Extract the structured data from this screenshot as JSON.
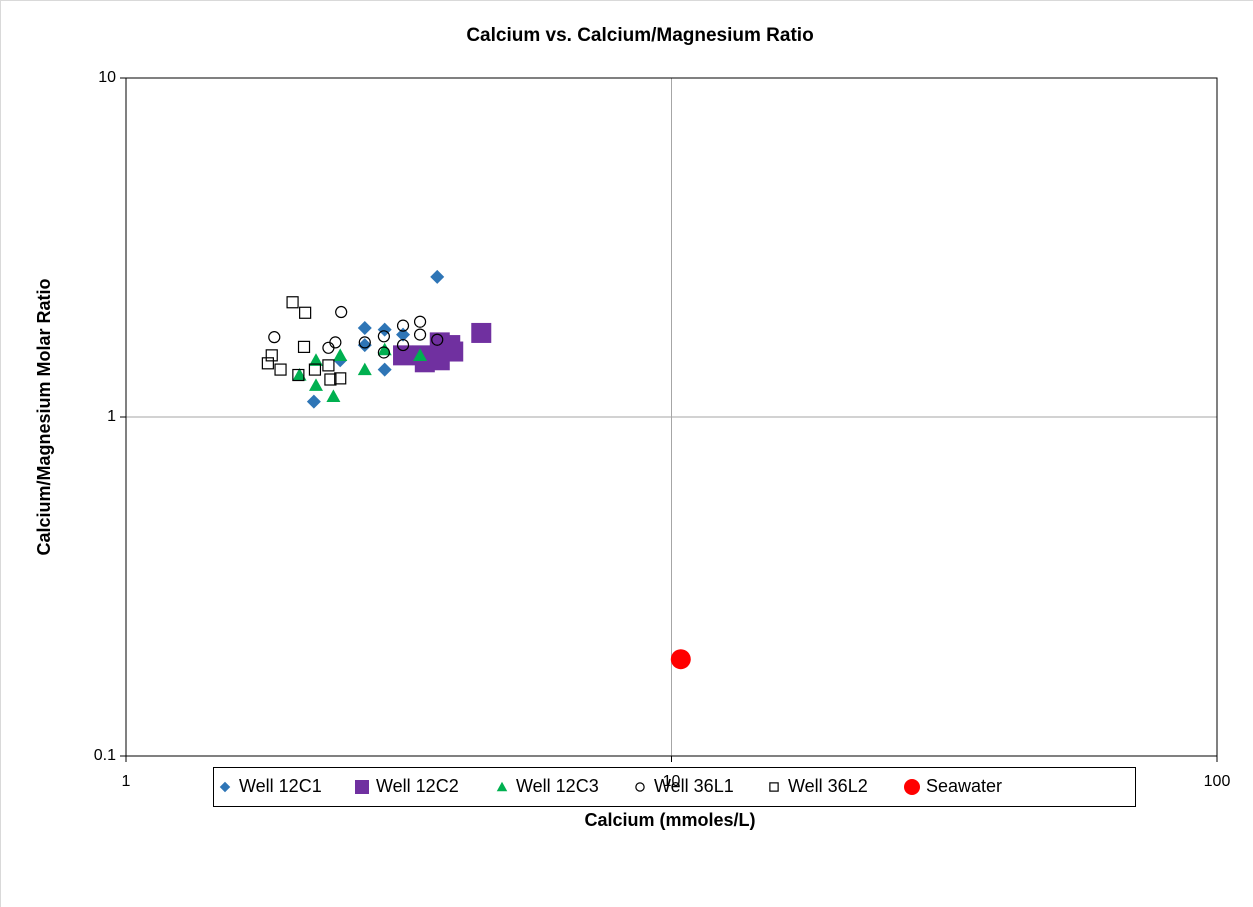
{
  "chart_data": {
    "type": "scatter",
    "title": "Calcium vs. Calcium/Magnesium  Ratio",
    "x_label": "Calcium (mmoles/L)",
    "y_label": "Calcium/Magnesium Molar Ratio",
    "xscale": "log",
    "yscale": "log",
    "xlim": [
      1,
      100
    ],
    "ylim": [
      0.1,
      10
    ],
    "xticks": [
      1,
      10,
      100
    ],
    "yticks": [
      0.1,
      1,
      10
    ],
    "grid": true,
    "legend": "bottom",
    "series": [
      {
        "name": "Well 12C1",
        "color": "#2e75b6",
        "marker": "diamond",
        "x": [
          3.72,
          2.21,
          2.74,
          2.98,
          2.98,
          2.74,
          3.22,
          2.47
        ],
        "values": [
          2.59,
          1.11,
          1.83,
          1.81,
          1.38,
          1.63,
          1.75,
          1.47
        ]
      },
      {
        "name": "Well 12C2",
        "color": "#7030a0",
        "marker": "square",
        "x": [
          3.76,
          3.93,
          3.5,
          3.22,
          4.48,
          3.76,
          3.53,
          3.98
        ],
        "values": [
          1.66,
          1.63,
          1.52,
          1.52,
          1.77,
          1.47,
          1.45,
          1.56
        ]
      },
      {
        "name": "Well 12C3",
        "color": "#00b050",
        "marker": "triangle",
        "x": [
          2.4,
          2.23,
          2.47,
          2.74,
          2.98,
          3.46,
          2.08,
          2.23
        ],
        "values": [
          1.15,
          1.24,
          1.52,
          1.38,
          1.58,
          1.52,
          1.33,
          1.47
        ]
      },
      {
        "name": "Well 36L1",
        "color": "#000000",
        "marker": "circle-open",
        "x": [
          1.87,
          2.48,
          2.35,
          2.74,
          2.97,
          3.22,
          3.46,
          3.72,
          2.42,
          2.97,
          3.22,
          3.46
        ],
        "values": [
          1.72,
          2.04,
          1.6,
          1.66,
          1.73,
          1.86,
          1.91,
          1.69,
          1.66,
          1.55,
          1.63,
          1.75
        ]
      },
      {
        "name": "Well 36L2",
        "color": "#000000",
        "marker": "square-open",
        "x": [
          2.02,
          2.13,
          2.12,
          1.85,
          1.82,
          1.92,
          2.07,
          2.37,
          2.47,
          2.22,
          2.35
        ],
        "values": [
          2.18,
          2.03,
          1.61,
          1.52,
          1.44,
          1.38,
          1.33,
          1.29,
          1.3,
          1.38,
          1.42
        ]
      },
      {
        "name": "Seawater",
        "color": "#ff0000",
        "marker": "circle",
        "x": [
          10.4
        ],
        "values": [
          0.193
        ]
      }
    ]
  }
}
